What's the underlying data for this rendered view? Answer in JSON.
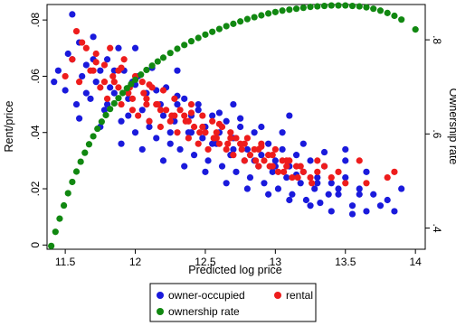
{
  "chart_data": {
    "type": "scatter",
    "title": "",
    "xlabel": "Predicted log price",
    "ylabel_left": "Rent/price",
    "ylabel_right": "Ownership rate",
    "xlim": [
      11.37,
      14.07
    ],
    "ylim_left": [
      -0.0015,
      0.0855
    ],
    "ylim_right": [
      0.355,
      0.875
    ],
    "x_ticks": [
      {
        "value": 11.5,
        "label": "11.5"
      },
      {
        "value": 12,
        "label": "12"
      },
      {
        "value": 12.5,
        "label": "12.5"
      },
      {
        "value": 13,
        "label": "13"
      },
      {
        "value": 13.5,
        "label": "13.5"
      },
      {
        "value": 14,
        "label": "14"
      }
    ],
    "y_left_ticks": [
      {
        "value": 0,
        "label": "0"
      },
      {
        "value": 0.02,
        "label": ".02"
      },
      {
        "value": 0.04,
        "label": ".04"
      },
      {
        "value": 0.06,
        "label": ".06"
      },
      {
        "value": 0.08,
        "label": ".08"
      }
    ],
    "y_right_ticks": [
      {
        "value": 0.4,
        "label": ".4"
      },
      {
        "value": 0.6,
        "label": ".6"
      },
      {
        "value": 0.8,
        "label": ".8"
      }
    ],
    "grid": false,
    "legend_position": "bottom",
    "series": [
      {
        "name": "owner-occupied",
        "axis": "left",
        "color": "#1a1adc",
        "marker": "circle",
        "x": [
          11.42,
          11.45,
          11.5,
          11.52,
          11.55,
          11.58,
          11.6,
          11.62,
          11.65,
          11.68,
          11.7,
          11.72,
          11.75,
          11.78,
          11.8,
          11.82,
          11.85,
          11.88,
          11.9,
          11.92,
          11.95,
          11.98,
          12.0,
          12.02,
          12.05,
          12.08,
          12.1,
          12.12,
          12.15,
          12.18,
          12.2,
          12.22,
          12.25,
          12.28,
          12.3,
          12.32,
          12.35,
          12.38,
          12.4,
          12.42,
          12.45,
          12.48,
          12.5,
          12.52,
          12.55,
          12.58,
          12.6,
          12.62,
          12.65,
          12.68,
          12.7,
          12.72,
          12.75,
          12.78,
          12.8,
          12.82,
          12.85,
          12.88,
          12.9,
          12.92,
          12.95,
          12.98,
          13.0,
          13.02,
          13.05,
          13.08,
          13.1,
          13.12,
          13.15,
          13.18,
          13.2,
          13.22,
          13.25,
          13.28,
          13.3,
          13.32,
          13.35,
          13.38,
          13.4,
          13.45,
          13.5,
          13.55,
          13.6,
          13.65,
          13.7,
          13.75,
          13.8,
          13.85,
          11.6,
          11.75,
          11.9,
          12.05,
          12.2,
          12.35,
          12.5,
          12.65,
          12.8,
          12.95,
          13.1,
          13.25,
          13.4,
          13.55,
          11.7,
          11.85,
          12.0,
          12.15,
          12.3,
          12.45,
          12.6,
          12.75,
          12.9,
          13.05,
          13.2,
          13.35,
          13.5,
          13.65,
          11.65,
          11.8,
          11.95,
          12.1,
          12.25,
          12.4,
          12.55,
          12.7,
          12.85,
          13.0,
          13.15,
          13.3,
          13.45,
          13.6,
          11.55,
          12.0,
          12.3,
          12.7,
          13.1,
          13.5,
          13.9
        ],
        "y": [
          0.058,
          0.062,
          0.055,
          0.068,
          0.066,
          0.05,
          0.072,
          0.06,
          0.064,
          0.052,
          0.074,
          0.058,
          0.062,
          0.048,
          0.066,
          0.056,
          0.054,
          0.07,
          0.044,
          0.062,
          0.052,
          0.058,
          0.04,
          0.06,
          0.048,
          0.054,
          0.042,
          0.063,
          0.038,
          0.05,
          0.046,
          0.056,
          0.036,
          0.044,
          0.05,
          0.034,
          0.052,
          0.04,
          0.046,
          0.032,
          0.048,
          0.038,
          0.042,
          0.03,
          0.046,
          0.036,
          0.04,
          0.028,
          0.044,
          0.032,
          0.038,
          0.026,
          0.042,
          0.03,
          0.034,
          0.024,
          0.04,
          0.028,
          0.032,
          0.022,
          0.036,
          0.026,
          0.03,
          0.02,
          0.034,
          0.024,
          0.028,
          0.018,
          0.032,
          0.022,
          0.026,
          0.016,
          0.03,
          0.02,
          0.024,
          0.015,
          0.028,
          0.018,
          0.022,
          0.018,
          0.024,
          0.014,
          0.02,
          0.012,
          0.018,
          0.014,
          0.016,
          0.012,
          0.045,
          0.042,
          0.036,
          0.034,
          0.03,
          0.028,
          0.026,
          0.022,
          0.02,
          0.018,
          0.016,
          0.014,
          0.012,
          0.011,
          0.066,
          0.062,
          0.057,
          0.055,
          0.053,
          0.05,
          0.047,
          0.045,
          0.042,
          0.04,
          0.036,
          0.033,
          0.03,
          0.026,
          0.054,
          0.05,
          0.046,
          0.044,
          0.04,
          0.04,
          0.036,
          0.034,
          0.03,
          0.028,
          0.025,
          0.022,
          0.02,
          0.018,
          0.082,
          0.07,
          0.062,
          0.05,
          0.046,
          0.034,
          0.02
        ]
      },
      {
        "name": "rental",
        "axis": "left",
        "color": "#ee1c1c",
        "marker": "circle",
        "x": [
          11.5,
          11.55,
          11.6,
          11.65,
          11.7,
          11.72,
          11.75,
          11.78,
          11.8,
          11.82,
          11.85,
          11.88,
          11.9,
          11.92,
          11.95,
          11.98,
          12.0,
          12.02,
          12.05,
          12.08,
          12.1,
          12.12,
          12.15,
          12.18,
          12.2,
          12.22,
          12.25,
          12.28,
          12.3,
          12.32,
          12.35,
          12.38,
          12.4,
          12.42,
          12.45,
          12.48,
          12.5,
          12.52,
          12.55,
          12.58,
          12.6,
          12.62,
          12.65,
          12.68,
          12.7,
          12.72,
          12.75,
          12.78,
          12.8,
          12.82,
          12.85,
          12.88,
          12.9,
          12.92,
          12.95,
          12.98,
          13.0,
          13.02,
          13.05,
          13.08,
          13.1,
          13.12,
          13.15,
          13.2,
          13.25,
          13.3,
          13.35,
          13.4,
          13.5,
          13.6,
          13.65,
          13.8,
          13.85,
          11.68,
          11.78,
          11.88,
          11.98,
          12.08,
          12.18,
          12.28,
          12.38,
          12.48,
          12.58,
          12.68,
          12.78,
          12.88,
          12.98,
          13.08,
          13.18,
          11.62,
          11.72,
          11.84,
          11.96,
          12.06,
          12.16,
          12.26,
          12.36,
          12.46,
          12.56,
          12.66,
          12.76,
          12.86,
          12.96,
          13.06,
          13.16,
          13.26,
          11.58,
          11.9,
          12.1,
          12.4,
          12.6,
          12.9,
          13.3,
          13.45
        ],
        "y": [
          0.06,
          0.066,
          0.058,
          0.07,
          0.062,
          0.068,
          0.056,
          0.064,
          0.052,
          0.07,
          0.058,
          0.062,
          0.05,
          0.066,
          0.054,
          0.048,
          0.06,
          0.046,
          0.058,
          0.052,
          0.044,
          0.056,
          0.05,
          0.042,
          0.055,
          0.048,
          0.044,
          0.052,
          0.04,
          0.048,
          0.046,
          0.038,
          0.05,
          0.042,
          0.036,
          0.046,
          0.04,
          0.034,
          0.044,
          0.038,
          0.036,
          0.042,
          0.034,
          0.04,
          0.032,
          0.038,
          0.036,
          0.03,
          0.038,
          0.032,
          0.034,
          0.028,
          0.036,
          0.03,
          0.032,
          0.028,
          0.034,
          0.026,
          0.03,
          0.028,
          0.03,
          0.024,
          0.028,
          0.026,
          0.024,
          0.026,
          0.028,
          0.024,
          0.022,
          0.03,
          0.022,
          0.024,
          0.026,
          0.062,
          0.058,
          0.056,
          0.052,
          0.05,
          0.048,
          0.046,
          0.044,
          0.042,
          0.04,
          0.038,
          0.036,
          0.034,
          0.032,
          0.03,
          0.028,
          0.072,
          0.065,
          0.06,
          0.056,
          0.054,
          0.05,
          0.046,
          0.044,
          0.04,
          0.038,
          0.036,
          0.034,
          0.03,
          0.028,
          0.026,
          0.024,
          0.022,
          0.076,
          0.063,
          0.057,
          0.047,
          0.043,
          0.035,
          0.03,
          0.026
        ]
      },
      {
        "name": "ownership rate",
        "axis": "right",
        "color": "#118811",
        "marker": "circle",
        "x": [
          11.4,
          11.43,
          11.46,
          11.49,
          11.52,
          11.55,
          11.58,
          11.61,
          11.64,
          11.67,
          11.7,
          11.73,
          11.76,
          11.79,
          11.82,
          11.85,
          11.88,
          11.91,
          11.94,
          11.97,
          12.0,
          12.04,
          12.08,
          12.12,
          12.16,
          12.2,
          12.25,
          12.3,
          12.35,
          12.4,
          12.45,
          12.5,
          12.55,
          12.6,
          12.65,
          12.7,
          12.75,
          12.8,
          12.85,
          12.9,
          12.95,
          13.0,
          13.05,
          13.1,
          13.15,
          13.2,
          13.25,
          13.3,
          13.35,
          13.4,
          13.45,
          13.5,
          13.55,
          13.6,
          13.65,
          13.7,
          13.75,
          13.8,
          13.85,
          13.9,
          14.0
        ],
        "y": [
          0.362,
          0.392,
          0.42,
          0.448,
          0.474,
          0.498,
          0.52,
          0.541,
          0.56,
          0.578,
          0.595,
          0.611,
          0.626,
          0.64,
          0.653,
          0.665,
          0.676,
          0.687,
          0.697,
          0.706,
          0.715,
          0.726,
          0.736,
          0.745,
          0.754,
          0.762,
          0.772,
          0.781,
          0.789,
          0.797,
          0.804,
          0.811,
          0.817,
          0.823,
          0.829,
          0.834,
          0.839,
          0.844,
          0.848,
          0.852,
          0.856,
          0.859,
          0.862,
          0.864,
          0.866,
          0.868,
          0.87,
          0.871,
          0.872,
          0.873,
          0.873,
          0.873,
          0.872,
          0.871,
          0.869,
          0.866,
          0.862,
          0.857,
          0.851,
          0.843,
          0.822
        ]
      }
    ],
    "legend": [
      {
        "label": "owner-occupied",
        "color": "#1a1adc"
      },
      {
        "label": "rental",
        "color": "#ee1c1c"
      },
      {
        "label": "ownership rate",
        "color": "#118811"
      }
    ]
  }
}
